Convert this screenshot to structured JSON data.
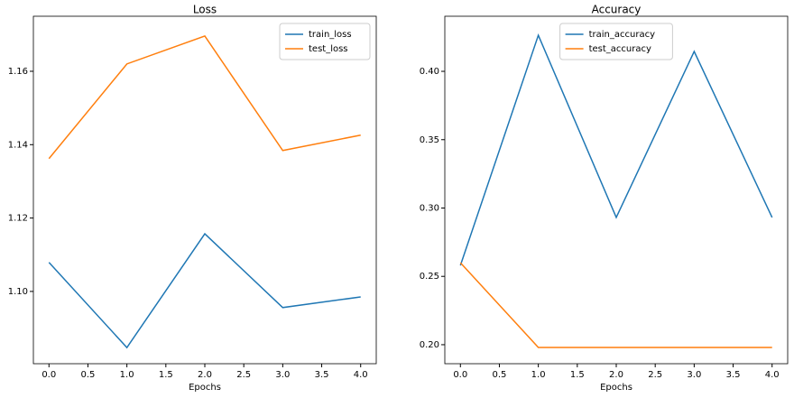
{
  "chart_data": [
    {
      "type": "line",
      "title": "Loss",
      "xlabel": "Epochs",
      "x": [
        0,
        1,
        2,
        3,
        4
      ],
      "series": [
        {
          "name": "train_loss",
          "color": "#1f77b4",
          "values": [
            1.1079,
            1.0847,
            1.1157,
            1.0956,
            1.0985
          ]
        },
        {
          "name": "test_loss",
          "color": "#ff7f0e",
          "values": [
            1.1362,
            1.162,
            1.1696,
            1.1384,
            1.1426
          ]
        }
      ],
      "xlim": [
        -0.2,
        4.2
      ],
      "xticks": [
        {
          "value": 0,
          "label": "0.0"
        },
        {
          "value": 0.5,
          "label": "0.5"
        },
        {
          "value": 1,
          "label": "1.0"
        },
        {
          "value": 1.5,
          "label": "1.5"
        },
        {
          "value": 2,
          "label": "2.0"
        },
        {
          "value": 2.5,
          "label": "2.5"
        },
        {
          "value": 3,
          "label": "3.0"
        },
        {
          "value": 3.5,
          "label": "3.5"
        },
        {
          "value": 4,
          "label": "4.0"
        }
      ],
      "ylim": [
        1.0803,
        1.175
      ],
      "yticks": [
        {
          "value": 1.1,
          "label": "1.10"
        },
        {
          "value": 1.12,
          "label": "1.12"
        },
        {
          "value": 1.14,
          "label": "1.14"
        },
        {
          "value": 1.16,
          "label": "1.16"
        }
      ],
      "legend": "upper right"
    },
    {
      "type": "line",
      "title": "Accuracy",
      "xlabel": "Epochs",
      "x": [
        0,
        1,
        2,
        3,
        4
      ],
      "series": [
        {
          "name": "train_accuracy",
          "color": "#1f77b4",
          "values": [
            0.258,
            0.4264,
            0.2931,
            0.4145,
            0.2931
          ]
        },
        {
          "name": "test_accuracy",
          "color": "#ff7f0e",
          "values": [
            0.26,
            0.198,
            0.198,
            0.198,
            0.198
          ]
        }
      ],
      "xlim": [
        -0.2,
        4.2
      ],
      "xticks": [
        {
          "value": 0,
          "label": "0.0"
        },
        {
          "value": 0.5,
          "label": "0.5"
        },
        {
          "value": 1,
          "label": "1.0"
        },
        {
          "value": 1.5,
          "label": "1.5"
        },
        {
          "value": 2,
          "label": "2.0"
        },
        {
          "value": 2.5,
          "label": "2.5"
        },
        {
          "value": 3,
          "label": "3.0"
        },
        {
          "value": 3.5,
          "label": "3.5"
        },
        {
          "value": 4,
          "label": "4.0"
        }
      ],
      "ylim": [
        0.1861,
        0.4403
      ],
      "yticks": [
        {
          "value": 0.2,
          "label": "0.20"
        },
        {
          "value": 0.25,
          "label": "0.25"
        },
        {
          "value": 0.3,
          "label": "0.30"
        },
        {
          "value": 0.35,
          "label": "0.35"
        },
        {
          "value": 0.4,
          "label": "0.40"
        }
      ],
      "legend": "upper center"
    }
  ]
}
